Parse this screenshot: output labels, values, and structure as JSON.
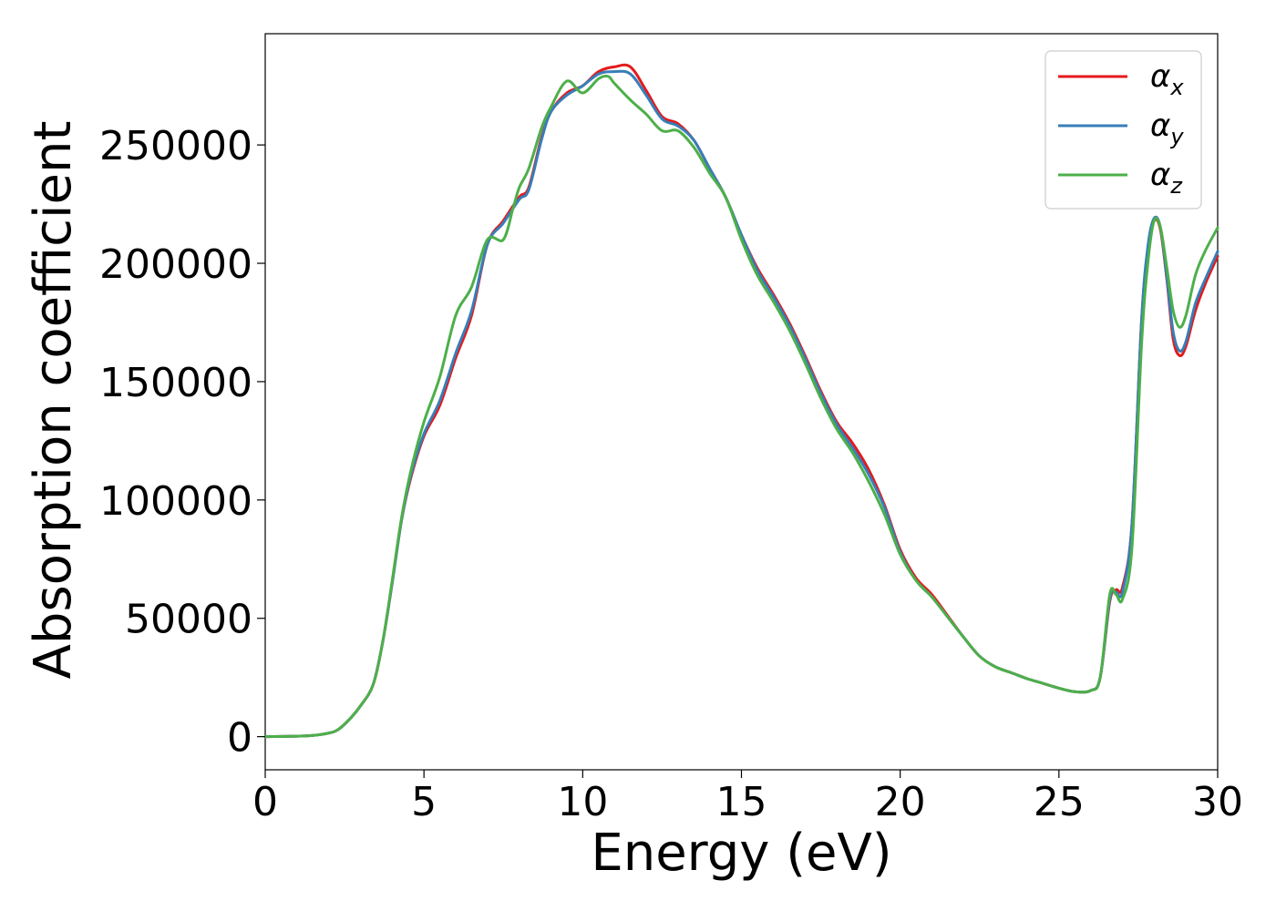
{
  "chart_data": {
    "type": "line",
    "title": "",
    "xlabel": "Energy (eV)",
    "ylabel": "Absorption coefficient",
    "xlim": [
      0,
      30
    ],
    "ylim": [
      -14000,
      297000
    ],
    "xticks": [
      0,
      5,
      10,
      15,
      20,
      25,
      30
    ],
    "yticks": [
      0,
      50000,
      100000,
      150000,
      200000,
      250000
    ],
    "x_tick_labels": [
      "0",
      "5",
      "10",
      "15",
      "20",
      "25",
      "30"
    ],
    "y_tick_labels": [
      "0",
      "50000",
      "100000",
      "150000",
      "200000",
      "250000"
    ],
    "grid": false,
    "legend_position": "top-right",
    "series": [
      {
        "name": "α",
        "subscript": "x",
        "color": "#e41a1c",
        "points": [
          [
            0,
            0
          ],
          [
            1,
            200
          ],
          [
            1.5,
            500
          ],
          [
            2,
            1500
          ],
          [
            2.3,
            3000
          ],
          [
            2.7,
            8000
          ],
          [
            3,
            13000
          ],
          [
            3.4,
            22000
          ],
          [
            3.7,
            40000
          ],
          [
            4,
            65000
          ],
          [
            4.3,
            92000
          ],
          [
            4.6,
            110000
          ],
          [
            5,
            127000
          ],
          [
            5.5,
            140000
          ],
          [
            6,
            160000
          ],
          [
            6.5,
            178000
          ],
          [
            7,
            208000
          ],
          [
            7.5,
            218000
          ],
          [
            8,
            228000
          ],
          [
            8.3,
            232000
          ],
          [
            8.7,
            253000
          ],
          [
            9,
            264000
          ],
          [
            9.5,
            272000
          ],
          [
            10,
            275000
          ],
          [
            10.5,
            281000
          ],
          [
            11,
            283000
          ],
          [
            11.5,
            283000
          ],
          [
            12,
            273000
          ],
          [
            12.5,
            262000
          ],
          [
            13,
            259000
          ],
          [
            13.5,
            252000
          ],
          [
            14,
            240000
          ],
          [
            14.5,
            228000
          ],
          [
            15,
            212000
          ],
          [
            15.5,
            198000
          ],
          [
            16,
            187000
          ],
          [
            16.5,
            175000
          ],
          [
            17,
            161000
          ],
          [
            17.5,
            146000
          ],
          [
            18,
            133000
          ],
          [
            18.5,
            124000
          ],
          [
            19,
            113000
          ],
          [
            19.5,
            98000
          ],
          [
            20,
            79000
          ],
          [
            20.5,
            67000
          ],
          [
            21,
            60000
          ],
          [
            21.5,
            51000
          ],
          [
            22,
            42000
          ],
          [
            22.5,
            34000
          ],
          [
            23,
            29500
          ],
          [
            23.5,
            27000
          ],
          [
            24,
            24500
          ],
          [
            24.5,
            22500
          ],
          [
            25,
            20500
          ],
          [
            25.5,
            19000
          ],
          [
            26,
            19500
          ],
          [
            26.3,
            25000
          ],
          [
            26.6,
            57000
          ],
          [
            26.8,
            62000
          ],
          [
            27,
            63000
          ],
          [
            27.3,
            90000
          ],
          [
            27.6,
            175000
          ],
          [
            27.8,
            205000
          ],
          [
            28,
            218000
          ],
          [
            28.2,
            214000
          ],
          [
            28.4,
            193000
          ],
          [
            28.6,
            168000
          ],
          [
            28.8,
            161000
          ],
          [
            29,
            165000
          ],
          [
            29.3,
            180000
          ],
          [
            29.6,
            191000
          ],
          [
            30,
            203000
          ]
        ]
      },
      {
        "name": "α",
        "subscript": "y",
        "color": "#377eb8",
        "points": [
          [
            0,
            0
          ],
          [
            1,
            200
          ],
          [
            1.5,
            500
          ],
          [
            2,
            1500
          ],
          [
            2.3,
            3000
          ],
          [
            2.7,
            8000
          ],
          [
            3,
            13000
          ],
          [
            3.4,
            22000
          ],
          [
            3.7,
            40000
          ],
          [
            4,
            65000
          ],
          [
            4.3,
            92000
          ],
          [
            4.6,
            111000
          ],
          [
            5,
            128000
          ],
          [
            5.5,
            142000
          ],
          [
            6,
            162000
          ],
          [
            6.5,
            180000
          ],
          [
            7,
            208000
          ],
          [
            7.5,
            217000
          ],
          [
            8,
            227000
          ],
          [
            8.3,
            231000
          ],
          [
            8.7,
            252000
          ],
          [
            9,
            264000
          ],
          [
            9.5,
            271000
          ],
          [
            10,
            275000
          ],
          [
            10.5,
            280000
          ],
          [
            11,
            281000
          ],
          [
            11.5,
            280000
          ],
          [
            12,
            271000
          ],
          [
            12.5,
            261000
          ],
          [
            13,
            258000
          ],
          [
            13.5,
            252000
          ],
          [
            14,
            240000
          ],
          [
            14.5,
            228000
          ],
          [
            15,
            212000
          ],
          [
            15.5,
            197000
          ],
          [
            16,
            186000
          ],
          [
            16.5,
            174000
          ],
          [
            17,
            160000
          ],
          [
            17.5,
            145000
          ],
          [
            18,
            132000
          ],
          [
            18.5,
            122000
          ],
          [
            19,
            111000
          ],
          [
            19.5,
            97000
          ],
          [
            20,
            78000
          ],
          [
            20.5,
            66000
          ],
          [
            21,
            59000
          ],
          [
            21.5,
            50500
          ],
          [
            22,
            42000
          ],
          [
            22.5,
            34000
          ],
          [
            23,
            29500
          ],
          [
            23.5,
            27000
          ],
          [
            24,
            24500
          ],
          [
            24.5,
            22500
          ],
          [
            25,
            20500
          ],
          [
            25.5,
            19000
          ],
          [
            26,
            19500
          ],
          [
            26.3,
            25000
          ],
          [
            26.6,
            58000
          ],
          [
            26.8,
            61000
          ],
          [
            27,
            61000
          ],
          [
            27.3,
            90000
          ],
          [
            27.6,
            175000
          ],
          [
            27.8,
            207000
          ],
          [
            28,
            219000
          ],
          [
            28.2,
            215000
          ],
          [
            28.4,
            194000
          ],
          [
            28.6,
            171000
          ],
          [
            28.8,
            163000
          ],
          [
            29,
            167000
          ],
          [
            29.3,
            183000
          ],
          [
            29.6,
            193000
          ],
          [
            30,
            205000
          ]
        ]
      },
      {
        "name": "α",
        "subscript": "z",
        "color": "#4daf4a",
        "points": [
          [
            0,
            0
          ],
          [
            1,
            200
          ],
          [
            1.5,
            500
          ],
          [
            2,
            1500
          ],
          [
            2.3,
            3000
          ],
          [
            2.7,
            8000
          ],
          [
            3,
            13000
          ],
          [
            3.4,
            22000
          ],
          [
            3.7,
            40000
          ],
          [
            4,
            66000
          ],
          [
            4.3,
            93000
          ],
          [
            4.6,
            113000
          ],
          [
            5,
            133000
          ],
          [
            5.5,
            152000
          ],
          [
            6,
            178000
          ],
          [
            6.5,
            190000
          ],
          [
            7,
            210000
          ],
          [
            7.5,
            210000
          ],
          [
            7.8,
            223000
          ],
          [
            8,
            232000
          ],
          [
            8.3,
            240000
          ],
          [
            8.7,
            257000
          ],
          [
            9,
            266000
          ],
          [
            9.5,
            277000
          ],
          [
            10,
            272000
          ],
          [
            10.5,
            278000
          ],
          [
            10.8,
            279000
          ],
          [
            11,
            276000
          ],
          [
            11.5,
            269000
          ],
          [
            12,
            263000
          ],
          [
            12.5,
            256000
          ],
          [
            13,
            256000
          ],
          [
            13.5,
            249000
          ],
          [
            14,
            238000
          ],
          [
            14.5,
            228000
          ],
          [
            15,
            210000
          ],
          [
            15.5,
            195000
          ],
          [
            16,
            184000
          ],
          [
            16.5,
            172000
          ],
          [
            17,
            158000
          ],
          [
            17.5,
            143000
          ],
          [
            18,
            130000
          ],
          [
            18.5,
            120000
          ],
          [
            19,
            108000
          ],
          [
            19.5,
            94000
          ],
          [
            20,
            77000
          ],
          [
            20.5,
            66000
          ],
          [
            21,
            59000
          ],
          [
            21.5,
            50500
          ],
          [
            22,
            42000
          ],
          [
            22.5,
            34000
          ],
          [
            23,
            29500
          ],
          [
            23.5,
            27000
          ],
          [
            24,
            24500
          ],
          [
            24.5,
            22500
          ],
          [
            25,
            20500
          ],
          [
            25.5,
            19000
          ],
          [
            26,
            19500
          ],
          [
            26.3,
            25000
          ],
          [
            26.6,
            60000
          ],
          [
            26.8,
            60000
          ],
          [
            27,
            58000
          ],
          [
            27.3,
            80000
          ],
          [
            27.6,
            165000
          ],
          [
            27.8,
            200000
          ],
          [
            28,
            218000
          ],
          [
            28.2,
            215000
          ],
          [
            28.4,
            198000
          ],
          [
            28.6,
            180000
          ],
          [
            28.8,
            173000
          ],
          [
            29,
            178000
          ],
          [
            29.3,
            195000
          ],
          [
            29.6,
            205000
          ],
          [
            30,
            215000
          ]
        ]
      }
    ]
  }
}
